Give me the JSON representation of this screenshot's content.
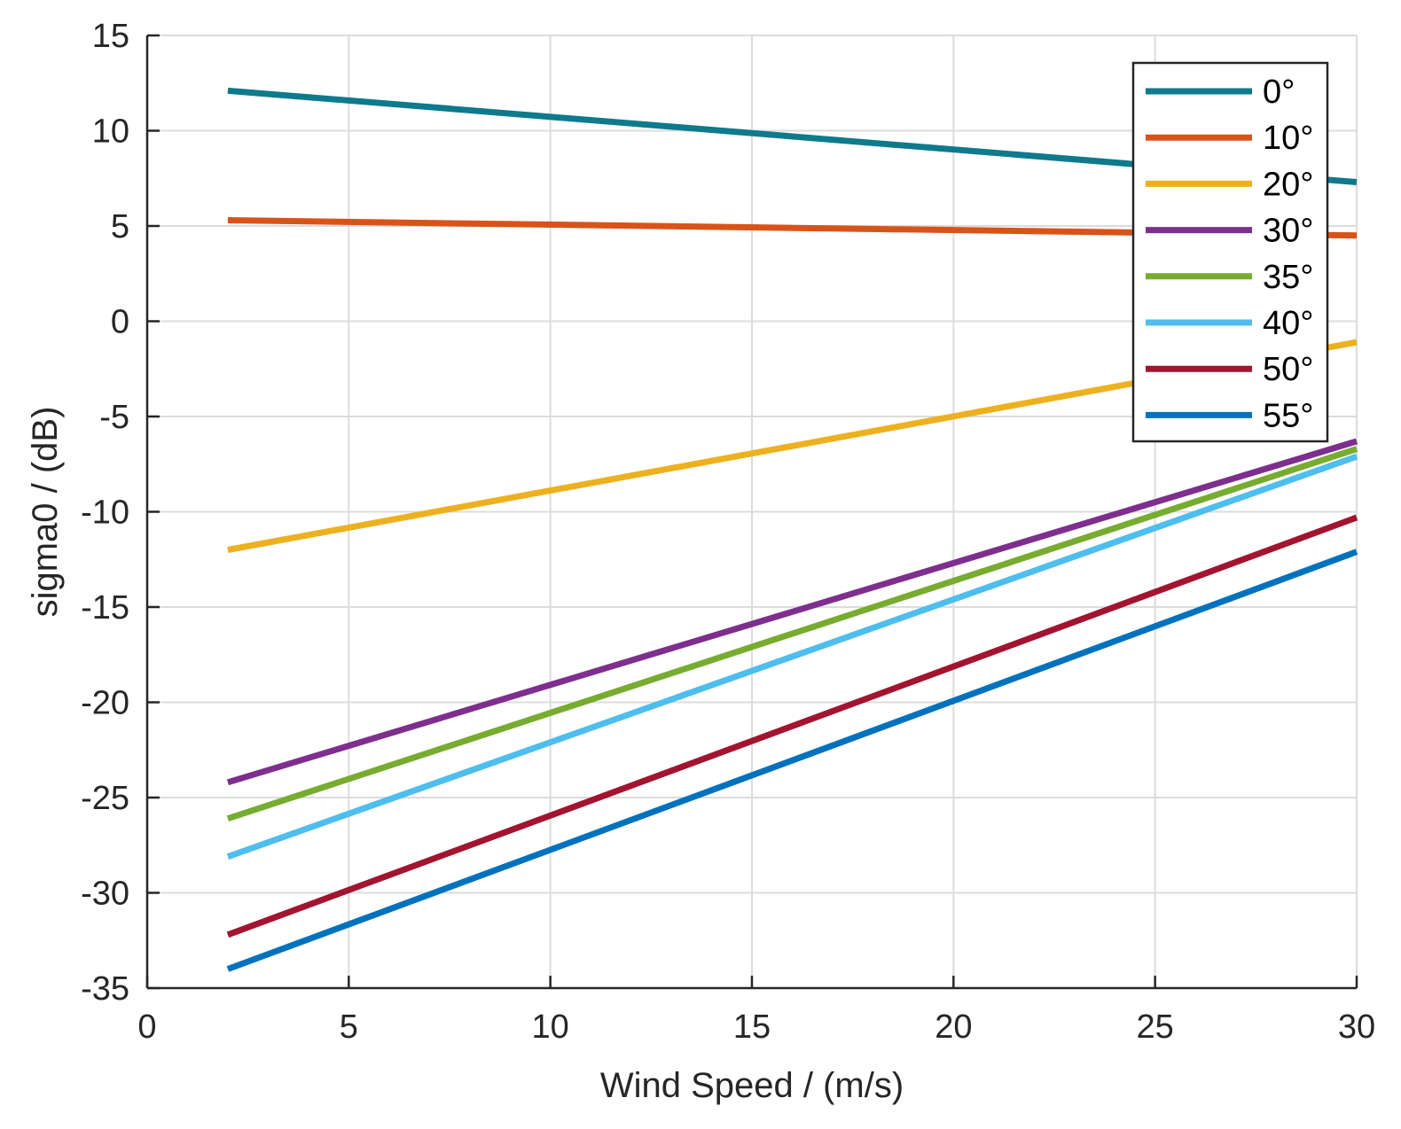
{
  "chart_data": {
    "type": "line",
    "title": "",
    "xlabel": "Wind Speed / (m/s)",
    "ylabel": "sigma0 / (dB)",
    "xlim": [
      0,
      30
    ],
    "ylim": [
      -35,
      15
    ],
    "xticks": [
      0,
      5,
      10,
      15,
      20,
      25,
      30
    ],
    "yticks": [
      15,
      10,
      5,
      0,
      -5,
      -10,
      -15,
      -20,
      -25,
      -30,
      -35
    ],
    "grid": true,
    "legend_position": "top-right",
    "series": [
      {
        "name": "0°",
        "color": "#0E7A8C",
        "x": [
          2,
          30
        ],
        "y": [
          12.1,
          7.3
        ]
      },
      {
        "name": "10°",
        "color": "#D95319",
        "x": [
          2,
          30
        ],
        "y": [
          5.3,
          4.5
        ]
      },
      {
        "name": "20°",
        "color": "#EDB120",
        "x": [
          2,
          30
        ],
        "y": [
          -12.0,
          -1.1
        ]
      },
      {
        "name": "30°",
        "color": "#7E2F8E",
        "x": [
          2,
          30
        ],
        "y": [
          -24.2,
          -6.3
        ]
      },
      {
        "name": "35°",
        "color": "#77AC30",
        "x": [
          2,
          30
        ],
        "y": [
          -26.1,
          -6.7
        ]
      },
      {
        "name": "40°",
        "color": "#4DBEEE",
        "x": [
          2,
          30
        ],
        "y": [
          -28.1,
          -7.1
        ]
      },
      {
        "name": "50°",
        "color": "#A2142F",
        "x": [
          2,
          30
        ],
        "y": [
          -32.2,
          -10.3
        ]
      },
      {
        "name": "55°",
        "color": "#0072BD",
        "x": [
          2,
          30
        ],
        "y": [
          -34.0,
          -12.1
        ]
      }
    ]
  }
}
